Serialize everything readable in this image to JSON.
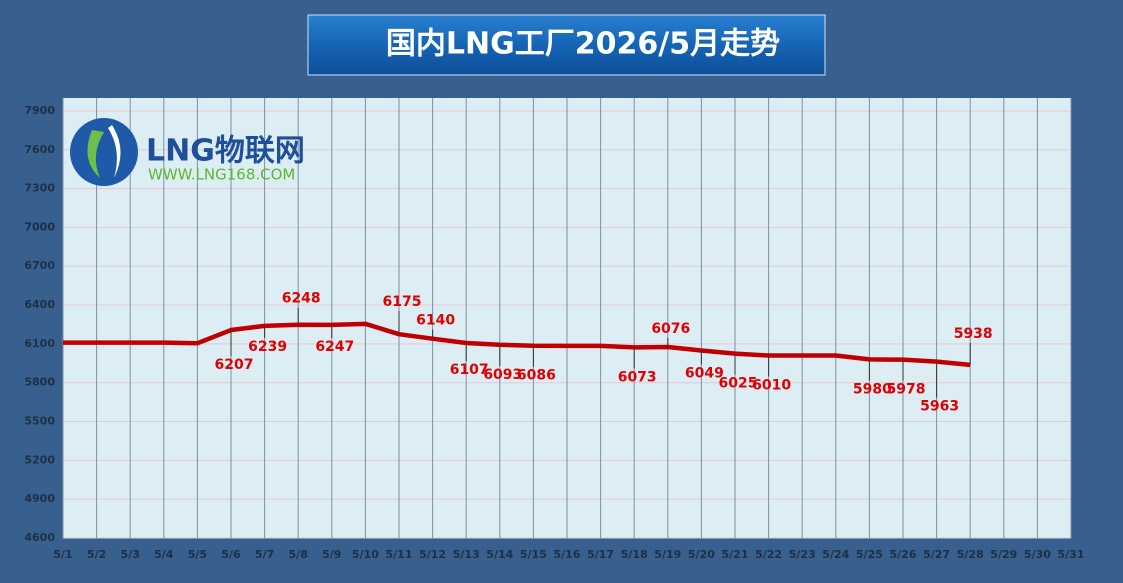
{
  "chart_data": {
    "type": "line",
    "title": "国内LNG工厂2026/5月走势",
    "logo": {
      "name": "LNG物联网",
      "url": "WWW.LNG168.COM"
    },
    "categories": [
      "5/1",
      "5/2",
      "5/3",
      "5/4",
      "5/5",
      "5/6",
      "5/7",
      "5/8",
      "5/9",
      "5/10",
      "5/11",
      "5/12",
      "5/13",
      "5/14",
      "5/15",
      "5/16",
      "5/17",
      "5/18",
      "5/19",
      "5/20",
      "5/21",
      "5/22",
      "5/23",
      "5/24",
      "5/25",
      "5/26",
      "5/27",
      "5/28",
      "5/29",
      "5/30",
      "5/31"
    ],
    "values": [
      6110,
      6110,
      6110,
      6110,
      6105,
      6207,
      6239,
      6248,
      6247,
      6255,
      6175,
      6140,
      6107,
      6093,
      6086,
      6085,
      6085,
      6073,
      6076,
      6049,
      6025,
      6010,
      6010,
      6010,
      5980,
      5978,
      5963,
      5938,
      null,
      null,
      null
    ],
    "value_labels": [
      null,
      null,
      null,
      null,
      null,
      "6207",
      "6239",
      "6248",
      "6247",
      null,
      "6175",
      "6140",
      "6107",
      "6093",
      "6086",
      null,
      null,
      "6073",
      "6076",
      "6049",
      "6025",
      "6010",
      null,
      null,
      "5980",
      "5978",
      "5963",
      "5938",
      null,
      null,
      null
    ],
    "color": "#c00000",
    "label_color": "#e00000",
    "ylim": [
      4600,
      8000
    ],
    "yticks": [
      4600,
      4900,
      5200,
      5500,
      5800,
      6100,
      6400,
      6700,
      7000,
      7300,
      7600,
      7900
    ],
    "grid": true
  }
}
